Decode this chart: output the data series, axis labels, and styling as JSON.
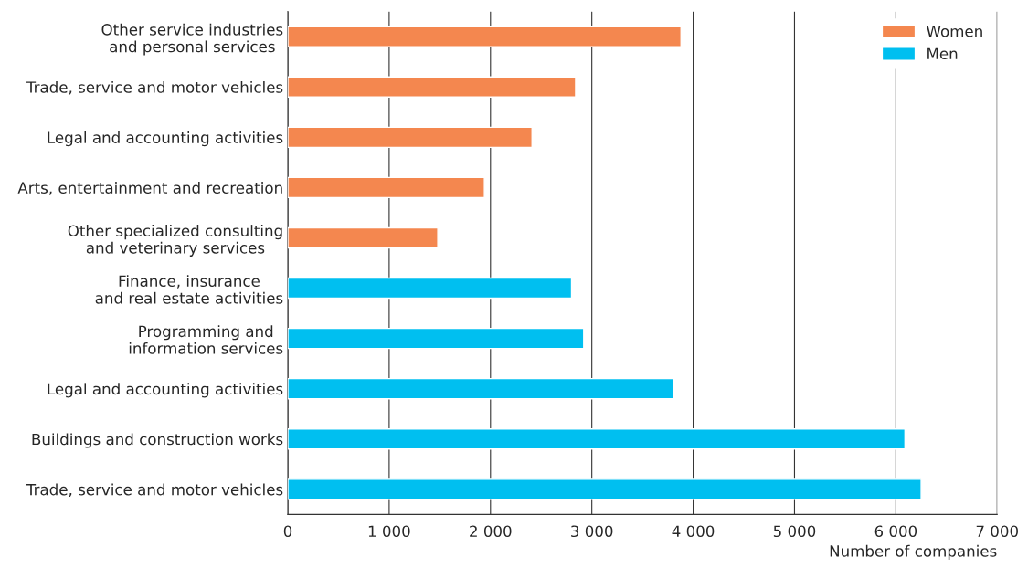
{
  "chart_data": {
    "type": "bar",
    "orientation": "horizontal",
    "categories": [
      "Other service industries\nand personal services",
      "Trade, service and motor vehicles",
      "Legal and accounting activities",
      "Arts, entertainment and recreation",
      "Other specialized consulting\nand veterinary services",
      "Finance, insurance\nand real estate activities",
      "Programming and\ninformation services",
      "Legal and accounting activities",
      "Buildings and construction works",
      "Trade, service and motor vehicles"
    ],
    "series": [
      {
        "name": "Women",
        "color": "#f4874f",
        "values": [
          3880,
          2840,
          2410,
          1940,
          1480,
          null,
          null,
          null,
          null,
          null
        ]
      },
      {
        "name": "Men",
        "color": "#00bff0",
        "values": [
          null,
          null,
          null,
          null,
          null,
          2800,
          2920,
          3810,
          6090,
          6250
        ]
      }
    ],
    "xlim": [
      0,
      7000
    ],
    "xticks": [
      0,
      {
        "value": 1000,
        "label": "1 000"
      },
      {
        "value": 2000,
        "label": "2 000"
      },
      {
        "value": 3000,
        "label": "3 000"
      },
      {
        "value": 4000,
        "label": "4 000"
      },
      {
        "value": 5000,
        "label": "5 000"
      },
      {
        "value": 6000,
        "label": "6 000"
      },
      {
        "value": 7000,
        "label": "7 000"
      }
    ],
    "xlabel": "Number of companies",
    "grid": "x",
    "legend": "top right"
  }
}
